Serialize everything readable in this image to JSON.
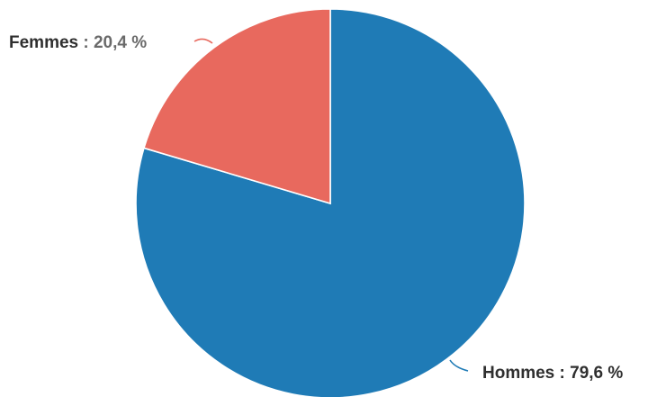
{
  "chart_data": {
    "type": "pie",
    "slices": [
      {
        "label": "Hommes",
        "value": 79.6,
        "display": "79,6 %",
        "color": "#1f7bb6"
      },
      {
        "label": "Femmes",
        "value": 20.4,
        "display": "20,4 %",
        "color": "#e8695e"
      }
    ],
    "start_angle_deg": 0,
    "direction": "clockwise",
    "separator": " : "
  },
  "colors": {
    "background": "#ffffff",
    "slice_border": "#ffffff",
    "label_name": "#2f2f2f"
  }
}
